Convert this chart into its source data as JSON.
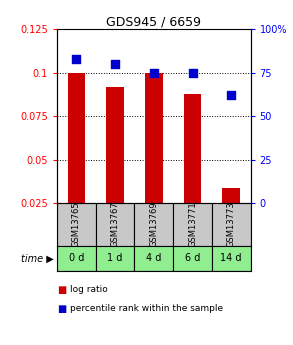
{
  "title": "GDS945 / 6659",
  "categories": [
    "GSM13765",
    "GSM13767",
    "GSM13769",
    "GSM13771",
    "GSM13773"
  ],
  "time_labels": [
    "0 d",
    "1 d",
    "4 d",
    "6 d",
    "14 d"
  ],
  "log_ratio": [
    0.1,
    0.092,
    0.1,
    0.088,
    0.034
  ],
  "percentile_rank": [
    83,
    80,
    75,
    75,
    62
  ],
  "bar_color": "#cc0000",
  "dot_color": "#0000cc",
  "ylim_left": [
    0.025,
    0.125
  ],
  "ylim_right": [
    0,
    100
  ],
  "yticks_left": [
    0.025,
    0.05,
    0.075,
    0.1,
    0.125
  ],
  "yticks_right": [
    0,
    25,
    50,
    75,
    100
  ],
  "ytick_labels_left": [
    "0.025",
    "0.05",
    "0.075",
    "0.1",
    "0.125"
  ],
  "ytick_labels_right": [
    "0",
    "25",
    "50",
    "75",
    "100%"
  ],
  "grid_values": [
    0.05,
    0.075,
    0.1
  ],
  "header_bg": "#c8c8c8",
  "time_bg": "#90ee90",
  "bar_bottom": 0.025,
  "dot_size": 35,
  "bar_width": 0.45,
  "title_fontsize": 9,
  "tick_fontsize": 7,
  "gsm_fontsize": 6,
  "time_fontsize": 7,
  "legend_fontsize": 6.5
}
